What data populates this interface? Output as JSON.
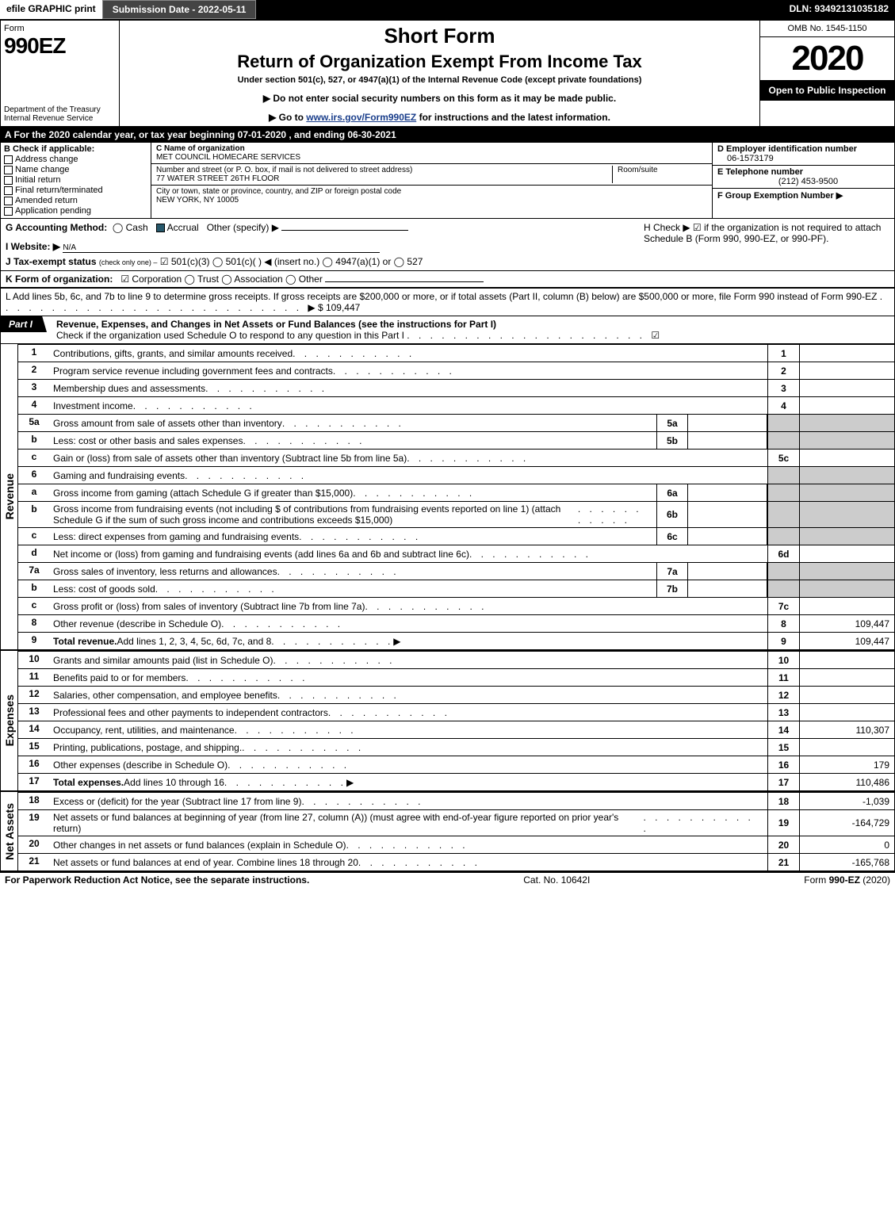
{
  "topbar": {
    "efile": "efile GRAPHIC print",
    "subdate_label": "Submission Date - 2022-05-11",
    "dln": "DLN: 93492131035182"
  },
  "header": {
    "form_word": "Form",
    "form_number": "990EZ",
    "dept": "Department of the Treasury",
    "irs": "Internal Revenue Service",
    "short": "Short Form",
    "title": "Return of Organization Exempt From Income Tax",
    "under": "Under section 501(c), 527, or 4947(a)(1) of the Internal Revenue Code (except private foundations)",
    "warn": "▶ Do not enter social security numbers on this form as it may be made public.",
    "goto_pre": "▶ Go to ",
    "goto_link": "www.irs.gov/Form990EZ",
    "goto_post": " for instructions and the latest information.",
    "omb": "OMB No. 1545-1150",
    "year": "2020",
    "open": "Open to Public Inspection"
  },
  "lineA": "A For the 2020 calendar year, or tax year beginning 07-01-2020 , and ending 06-30-2021",
  "boxB": {
    "title": "B Check if applicable:",
    "opts": [
      "Address change",
      "Name change",
      "Initial return",
      "Final return/terminated",
      "Amended return",
      "Application pending"
    ]
  },
  "boxC": {
    "label_name": "C Name of organization",
    "name": "MET COUNCIL HOMECARE SERVICES",
    "label_addr": "Number and street (or P. O. box, if mail is not delivered to street address)",
    "addr": "77 WATER STREET 26TH FLOOR",
    "room_label": "Room/suite",
    "label_city": "City or town, state or province, country, and ZIP or foreign postal code",
    "city": "NEW YORK, NY   10005"
  },
  "boxD": {
    "d_label": "D Employer identification number",
    "d_val": "06-1573179",
    "e_label": "E Telephone number",
    "e_val": "(212) 453-9500",
    "f_label": "F Group Exemption Number   ▶"
  },
  "gh": {
    "g_label": "G Accounting Method:",
    "g_cash": "Cash",
    "g_accrual": "Accrual",
    "g_other": "Other (specify) ▶",
    "h_text": "H  Check ▶ ☑ if the organization is not required to attach Schedule B (Form 990, 990-EZ, or 990-PF).",
    "i_label": "I Website: ▶",
    "i_val": "N/A",
    "j_label": "J Tax-exempt status",
    "j_sub": "(check only one) ‒",
    "j_opts": "☑ 501(c)(3)  ◯ 501(c)(  ) ◀ (insert no.)  ◯ 4947(a)(1) or  ◯ 527"
  },
  "lineK": {
    "label": "K Form of organization:",
    "opts": "☑ Corporation   ◯ Trust   ◯ Association   ◯ Other"
  },
  "lineL": {
    "text": "L Add lines 5b, 6c, and 7b to line 9 to determine gross receipts. If gross receipts are $200,000 or more, or if total assets (Part II, column (B) below) are $500,000 or more, file Form 990 instead of Form 990-EZ",
    "amount": "▶ $ 109,447"
  },
  "partI": {
    "tab": "Part I",
    "title": "Revenue, Expenses, and Changes in Net Assets or Fund Balances (see the instructions for Part I)",
    "sub": "Check if the organization used Schedule O to respond to any question in this Part I",
    "checked": "☑"
  },
  "sides": {
    "revenue": "Revenue",
    "expenses": "Expenses",
    "netassets": "Net Assets"
  },
  "revenue_lines": [
    {
      "n": "1",
      "d": "Contributions, gifts, grants, and similar amounts received",
      "rn": "1",
      "rv": ""
    },
    {
      "n": "2",
      "d": "Program service revenue including government fees and contracts",
      "rn": "2",
      "rv": ""
    },
    {
      "n": "3",
      "d": "Membership dues and assessments",
      "rn": "3",
      "rv": ""
    },
    {
      "n": "4",
      "d": "Investment income",
      "rn": "4",
      "rv": ""
    },
    {
      "n": "5a",
      "d": "Gross amount from sale of assets other than inventory",
      "in": "5a"
    },
    {
      "n": "b",
      "d": "Less: cost or other basis and sales expenses",
      "in": "5b"
    },
    {
      "n": "c",
      "d": "Gain or (loss) from sale of assets other than inventory (Subtract line 5b from line 5a)",
      "rn": "5c",
      "rv": ""
    },
    {
      "n": "6",
      "d": "Gaming and fundraising events"
    },
    {
      "n": "a",
      "d": "Gross income from gaming (attach Schedule G if greater than $15,000)",
      "in": "6a"
    },
    {
      "n": "b",
      "d": "Gross income from fundraising events (not including $                    of contributions from fundraising events reported on line 1) (attach Schedule G if the sum of such gross income and contributions exceeds $15,000)",
      "in": "6b"
    },
    {
      "n": "c",
      "d": "Less: direct expenses from gaming and fundraising events",
      "in": "6c"
    },
    {
      "n": "d",
      "d": "Net income or (loss) from gaming and fundraising events (add lines 6a and 6b and subtract line 6c)",
      "rn": "6d",
      "rv": ""
    },
    {
      "n": "7a",
      "d": "Gross sales of inventory, less returns and allowances",
      "in": "7a"
    },
    {
      "n": "b",
      "d": "Less: cost of goods sold",
      "in": "7b"
    },
    {
      "n": "c",
      "d": "Gross profit or (loss) from sales of inventory (Subtract line 7b from line 7a)",
      "rn": "7c",
      "rv": ""
    },
    {
      "n": "8",
      "d": "Other revenue (describe in Schedule O)",
      "rn": "8",
      "rv": "109,447"
    },
    {
      "n": "9",
      "d": "Total revenue. Add lines 1, 2, 3, 4, 5c, 6d, 7c, and 8",
      "rn": "9",
      "rv": "109,447",
      "bold": true,
      "arrow": true
    }
  ],
  "expense_lines": [
    {
      "n": "10",
      "d": "Grants and similar amounts paid (list in Schedule O)",
      "rn": "10",
      "rv": ""
    },
    {
      "n": "11",
      "d": "Benefits paid to or for members",
      "rn": "11",
      "rv": ""
    },
    {
      "n": "12",
      "d": "Salaries, other compensation, and employee benefits",
      "rn": "12",
      "rv": ""
    },
    {
      "n": "13",
      "d": "Professional fees and other payments to independent contractors",
      "rn": "13",
      "rv": ""
    },
    {
      "n": "14",
      "d": "Occupancy, rent, utilities, and maintenance",
      "rn": "14",
      "rv": "110,307"
    },
    {
      "n": "15",
      "d": "Printing, publications, postage, and shipping.",
      "rn": "15",
      "rv": ""
    },
    {
      "n": "16",
      "d": "Other expenses (describe in Schedule O)",
      "rn": "16",
      "rv": "179"
    },
    {
      "n": "17",
      "d": "Total expenses. Add lines 10 through 16",
      "rn": "17",
      "rv": "110,486",
      "bold": true,
      "arrow": true
    }
  ],
  "net_lines": [
    {
      "n": "18",
      "d": "Excess or (deficit) for the year (Subtract line 17 from line 9)",
      "rn": "18",
      "rv": "-1,039"
    },
    {
      "n": "19",
      "d": "Net assets or fund balances at beginning of year (from line 27, column (A)) (must agree with end-of-year figure reported on prior year's return)",
      "rn": "19",
      "rv": "-164,729"
    },
    {
      "n": "20",
      "d": "Other changes in net assets or fund balances (explain in Schedule O)",
      "rn": "20",
      "rv": "0"
    },
    {
      "n": "21",
      "d": "Net assets or fund balances at end of year. Combine lines 18 through 20",
      "rn": "21",
      "rv": "-165,768"
    }
  ],
  "footer": {
    "left": "For Paperwork Reduction Act Notice, see the separate instructions.",
    "mid": "Cat. No. 10642I",
    "right": "Form 990-EZ (2020)"
  }
}
